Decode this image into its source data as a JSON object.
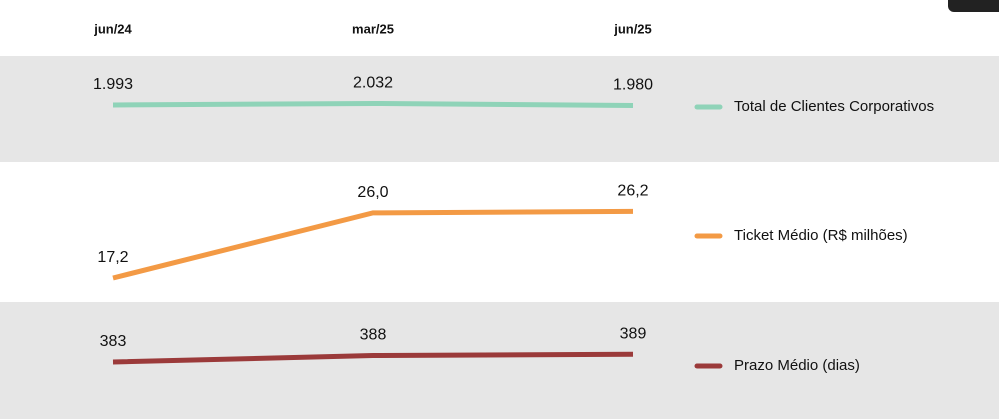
{
  "chart_data": {
    "type": "line",
    "categories": [
      "jun/24",
      "mar/25",
      "jun/25"
    ],
    "series": [
      {
        "name": "Total de Clientes Corporativos",
        "color": "#8fd3b8",
        "values": [
          1993,
          2032,
          1980
        ],
        "value_labels": [
          "1.993",
          "2.032",
          "1.980"
        ]
      },
      {
        "name": "Ticket Médio (R$ milhões)",
        "color": "#f39a45",
        "values": [
          17.2,
          26.0,
          26.2
        ],
        "value_labels": [
          "17,2",
          "26,0",
          "26,2"
        ]
      },
      {
        "name": "Prazo Médio (dias)",
        "color": "#9b3a3a",
        "values": [
          383,
          388,
          389
        ],
        "value_labels": [
          "383",
          "388",
          "389"
        ]
      }
    ]
  }
}
